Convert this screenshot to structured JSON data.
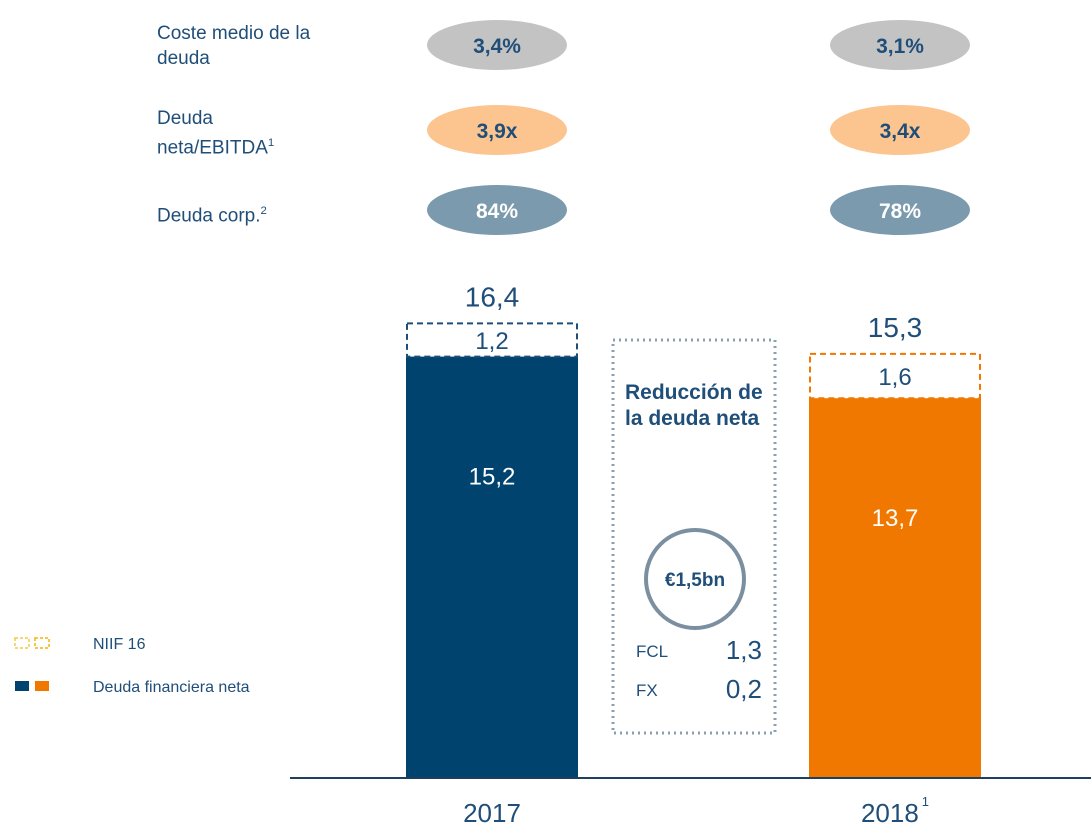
{
  "chart_data": {
    "type": "bar",
    "stacked": true,
    "categories": [
      "2017",
      "2018"
    ],
    "category_notes": [
      null,
      "1"
    ],
    "series": [
      {
        "name": "Deuda financiera neta",
        "style": "solid",
        "colors": [
          "#00436e",
          "#f07800"
        ],
        "values": [
          15.2,
          13.7
        ],
        "value_labels": [
          "15,2",
          "13,7"
        ]
      },
      {
        "name": "NIIF 16",
        "style": "dashed",
        "colors": [
          "#1f4e79",
          "#f07800"
        ],
        "values": [
          1.2,
          1.6
        ],
        "value_labels": [
          "1,2",
          "1,6"
        ]
      }
    ],
    "totals": [
      16.4,
      15.3
    ],
    "total_labels": [
      "16,4",
      "15,3"
    ],
    "ylim": [
      0,
      18
    ]
  },
  "metrics": [
    {
      "label": "Coste medio de la deuda",
      "note": null,
      "values": [
        "3,4%",
        "3,1%"
      ],
      "color": "#c3c3c3",
      "text_color": "#1f4e79"
    },
    {
      "label": "Deuda neta/EBITDA",
      "note": "1",
      "values": [
        "3,9x",
        "3,4x"
      ],
      "color": "#fcc590",
      "text_color": "#1f4e79"
    },
    {
      "label": "Deuda corp.",
      "note": "2",
      "values": [
        "84%",
        "78%"
      ],
      "color": "#7b9aad",
      "text_color": "#ffffff"
    }
  ],
  "callout": {
    "title": "Reducción de la deuda neta",
    "amount": "€1,5bn",
    "items": [
      {
        "label": "FCL",
        "value": "1,3"
      },
      {
        "label": "FX",
        "value": "0,2"
      }
    ]
  }
}
